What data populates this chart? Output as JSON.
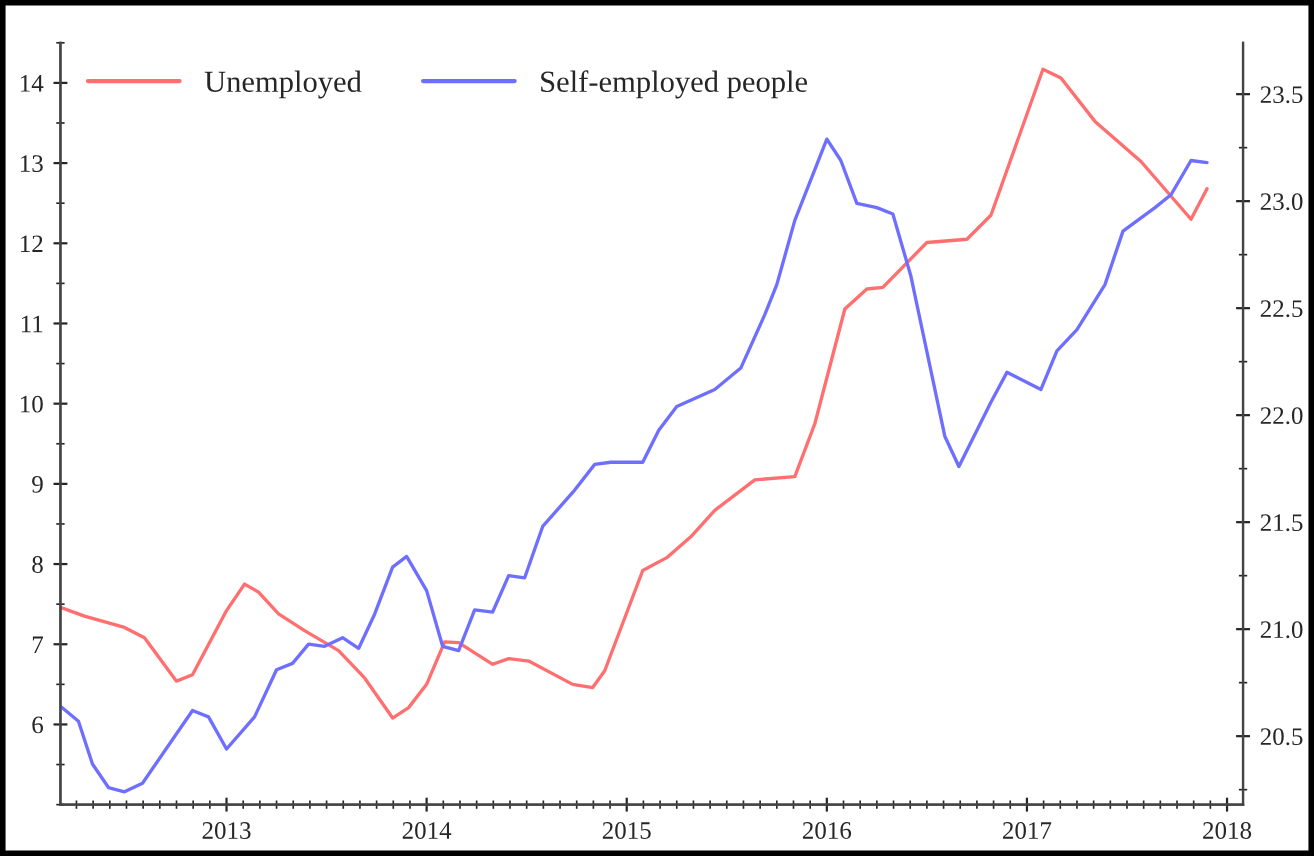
{
  "chart_data": {
    "type": "line",
    "xlim": [
      2012.17,
      2018.08
    ],
    "xticks": [
      2013,
      2014,
      2015,
      2016,
      2017,
      2018
    ],
    "ylim": [
      5.0,
      14.5
    ],
    "yticks": [
      6,
      7,
      8,
      9,
      10,
      11,
      12,
      13,
      14
    ],
    "y2lim": [
      20.18,
      23.74
    ],
    "y2ticks": [
      20.5,
      {
        "value": 21,
        "label": "21.0"
      },
      21.5,
      {
        "value": 22,
        "label": "22.0"
      },
      22.5,
      {
        "value": 23,
        "label": "23.0"
      },
      23.5
    ],
    "legend": "top left",
    "grid": false,
    "marker": "none",
    "line_style": "solid",
    "series": [
      {
        "name": "Unemployed",
        "color": "#ff6f6f",
        "x": [
          2012.17,
          2012.29,
          2012.49,
          2012.59,
          2012.75,
          2012.83,
          2013.0,
          2013.09,
          2013.16,
          2013.26,
          2013.39,
          2013.56,
          2013.69,
          2013.83,
          2013.91,
          2014.0,
          2014.09,
          2014.16,
          2014.33,
          2014.41,
          2014.51,
          2014.73,
          2014.83,
          2014.89,
          2015.08,
          2015.2,
          2015.32,
          2015.44,
          2015.64,
          2015.84,
          2015.94,
          2016.09,
          2016.2,
          2016.28,
          2016.5,
          2016.7,
          2016.82,
          2017.08,
          2017.17,
          2017.34,
          2017.57,
          2017.82,
          2017.9
        ],
        "values": [
          7.46,
          7.35,
          7.21,
          7.08,
          6.54,
          6.62,
          7.42,
          7.75,
          7.65,
          7.38,
          7.17,
          6.92,
          6.58,
          6.08,
          6.21,
          6.5,
          7.03,
          7.02,
          6.75,
          6.82,
          6.79,
          6.5,
          6.46,
          6.67,
          7.92,
          8.08,
          8.34,
          8.67,
          9.05,
          9.09,
          9.75,
          11.18,
          11.43,
          11.45,
          12.01,
          12.05,
          12.35,
          14.17,
          14.06,
          13.52,
          13.02,
          12.3,
          12.68
        ]
      },
      {
        "name": "Self-employed people",
        "color": "#6f6fff",
        "axis": "y2",
        "x": [
          2012.17,
          2012.26,
          2012.33,
          2012.41,
          2012.49,
          2012.58,
          2012.83,
          2012.91,
          2013.0,
          2013.14,
          2013.25,
          2013.33,
          2013.41,
          2013.49,
          2013.58,
          2013.66,
          2013.74,
          2013.83,
          2013.9,
          2014.0,
          2014.08,
          2014.16,
          2014.24,
          2014.33,
          2014.41,
          2014.49,
          2014.58,
          2014.74,
          2014.84,
          2014.92,
          2015.08,
          2015.16,
          2015.25,
          2015.44,
          2015.57,
          2015.69,
          2015.75,
          2015.84,
          2016.0,
          2016.07,
          2016.15,
          2016.25,
          2016.33,
          2016.42,
          2016.59,
          2016.66,
          2016.82,
          2016.9,
          2017.07,
          2017.15,
          2017.25,
          2017.39,
          2017.48,
          2017.64,
          2017.72,
          2017.82,
          2017.9
        ],
        "values": [
          20.64,
          20.57,
          20.37,
          20.26,
          20.24,
          20.28,
          20.62,
          20.59,
          20.44,
          20.59,
          20.81,
          20.84,
          20.93,
          20.92,
          20.96,
          20.91,
          21.07,
          21.29,
          21.34,
          21.18,
          20.92,
          20.9,
          21.09,
          21.08,
          21.25,
          21.24,
          21.48,
          21.65,
          21.77,
          21.78,
          21.78,
          21.93,
          22.04,
          22.12,
          22.22,
          22.47,
          22.61,
          22.91,
          23.29,
          23.19,
          22.99,
          22.97,
          22.94,
          22.65,
          21.9,
          21.76,
          22.06,
          22.2,
          22.12,
          22.3,
          22.4,
          22.61,
          22.86,
          22.97,
          23.03,
          23.19,
          23.18
        ]
      }
    ]
  }
}
